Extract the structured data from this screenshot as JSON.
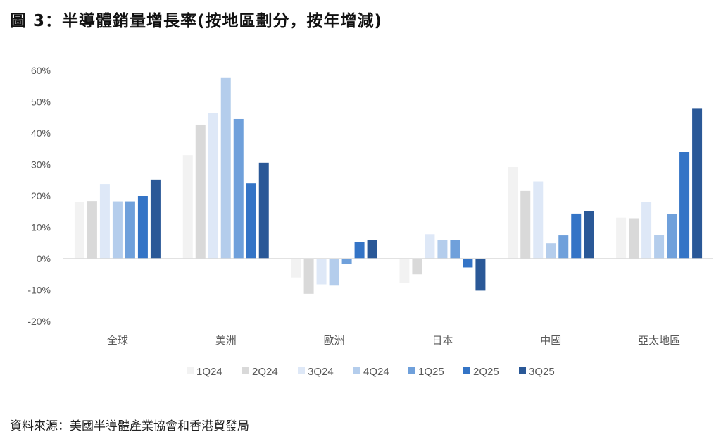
{
  "title": "圖 3：半導體銷量增長率(按地區劃分，按年增減)",
  "source": "資料來源：美國半導體產業協會和香港貿發局",
  "chart_data": {
    "type": "bar",
    "title": "圖 3：半導體銷量增長率(按地區劃分，按年增減)",
    "xlabel": "",
    "ylabel": "",
    "ylim": [
      -20,
      60
    ],
    "yticks": [
      60,
      50,
      40,
      30,
      20,
      10,
      0,
      -10,
      -20
    ],
    "ytick_labels": [
      "60%",
      "50%",
      "40%",
      "30%",
      "20%",
      "10%",
      "0%",
      "-10%",
      "-20%"
    ],
    "grid": false,
    "legend_position": "bottom",
    "categories": [
      "全球",
      "美洲",
      "歐洲",
      "日本",
      "中國",
      "亞太地區"
    ],
    "series": [
      {
        "name": "1Q24",
        "color": "#f2f2f2",
        "values": [
          18.2,
          33.0,
          -6.0,
          -7.8,
          29.2,
          13.1
        ]
      },
      {
        "name": "2Q24",
        "color": "#d9d9d9",
        "values": [
          18.4,
          42.7,
          -11.2,
          -5.0,
          21.6,
          12.7
        ]
      },
      {
        "name": "3Q24",
        "color": "#dee8f7",
        "values": [
          23.8,
          46.3,
          -8.2,
          7.8,
          24.6,
          18.2
        ]
      },
      {
        "name": "4Q24",
        "color": "#b4cdec",
        "values": [
          18.3,
          57.8,
          -8.6,
          6.0,
          4.9,
          7.5
        ]
      },
      {
        "name": "1Q25",
        "color": "#6fa0db",
        "values": [
          18.3,
          44.5,
          -1.8,
          6.0,
          7.4,
          14.3
        ]
      },
      {
        "name": "2Q25",
        "color": "#3474c6",
        "values": [
          20.0,
          24.0,
          5.3,
          -2.8,
          14.4,
          34.0
        ]
      },
      {
        "name": "3Q25",
        "color": "#2a5897",
        "values": [
          25.2,
          30.6,
          5.9,
          -10.2,
          15.1,
          48.0
        ]
      }
    ]
  }
}
